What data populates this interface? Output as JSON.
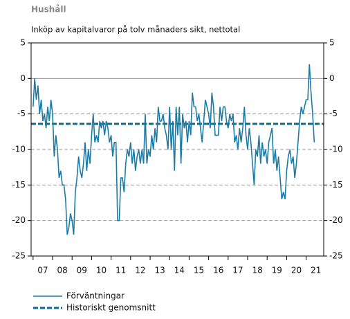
{
  "chart_data": {
    "type": "line",
    "title": "Hushåll",
    "subtitle": "Inköp av kapitalvaror på tolv månaders sikt, nettotal",
    "xlim": [
      2006.9,
      2021.9
    ],
    "xticks": [
      {
        "value": 2007.5,
        "label": "07"
      },
      {
        "value": 2008.5,
        "label": "08"
      },
      {
        "value": 2009.5,
        "label": "09"
      },
      {
        "value": 2010.5,
        "label": "10"
      },
      {
        "value": 2011.5,
        "label": "11"
      },
      {
        "value": 2012.5,
        "label": "12"
      },
      {
        "value": 2013.5,
        "label": "13"
      },
      {
        "value": 2014.5,
        "label": "14"
      },
      {
        "value": 2015.5,
        "label": "15"
      },
      {
        "value": 2016.5,
        "label": "16"
      },
      {
        "value": 2017.5,
        "label": "17"
      },
      {
        "value": 2018.5,
        "label": "18"
      },
      {
        "value": 2019.5,
        "label": "19"
      },
      {
        "value": 2020.5,
        "label": "20"
      },
      {
        "value": 2021.5,
        "label": "21"
      }
    ],
    "xminor_ticks": [
      2007,
      2008,
      2009,
      2010,
      2011,
      2012,
      2013,
      2014,
      2015,
      2016,
      2017,
      2018,
      2019,
      2020,
      2021
    ],
    "ylim": [
      -25,
      5
    ],
    "yticks": [
      5,
      0,
      -5,
      -10,
      -15,
      -20,
      -25
    ],
    "y2lim": [
      -25,
      5
    ],
    "y2ticks": [
      5,
      0,
      -5,
      -10,
      -15,
      -20,
      -25
    ],
    "series": [
      {
        "name": "Förväntningar",
        "color": "#1b7ba6",
        "start": 2007,
        "step": 0.08333,
        "values": [
          -4,
          0,
          -3,
          -1,
          -5,
          -3,
          -6,
          -5,
          -7,
          -4,
          -6,
          -3,
          -5,
          -11,
          -8,
          -10,
          -14,
          -13,
          -15,
          -15,
          -17,
          -22,
          -21,
          -19,
          -20,
          -22,
          -16,
          -14,
          -11,
          -13,
          -14,
          -12,
          -9,
          -13,
          -10,
          -12,
          -8,
          -5,
          -9,
          -8,
          -9,
          -6,
          -7,
          -6,
          -8,
          -6,
          -7,
          -9,
          -8,
          -11,
          -9,
          -9,
          -20,
          -20,
          -14,
          -14,
          -16,
          -12,
          -10,
          -11,
          -9,
          -12,
          -10,
          -13,
          -11,
          -10,
          -12,
          -10,
          -12,
          -5,
          -12,
          -10,
          -11,
          -8,
          -10,
          -7,
          -9,
          -4,
          -6,
          -6,
          -5,
          -7,
          -8,
          -10,
          -4,
          -10,
          -6,
          -13,
          -4,
          -8,
          -4,
          -12,
          -5,
          -7,
          -6,
          -9,
          -6,
          -8,
          -2,
          -4,
          -4,
          -6,
          -5,
          -7,
          -9,
          -6,
          -3,
          -4,
          -5,
          -7,
          -2,
          -4,
          -8,
          -8,
          -8,
          -4,
          -6,
          -4,
          -4,
          -6,
          -7,
          -5,
          -6,
          -5,
          -9,
          -8,
          -10,
          -7,
          -9,
          -7,
          -4,
          -8,
          -10,
          -7,
          -9,
          -12,
          -15,
          -10,
          -11,
          -8,
          -12,
          -9,
          -11,
          -10,
          -12,
          -9,
          -8,
          -7,
          -12,
          -10,
          -13,
          -11,
          -14,
          -17,
          -16,
          -17,
          -13,
          -11,
          -10,
          -12,
          -11,
          -14,
          -12,
          -9,
          -6,
          -4,
          -5,
          -4,
          -3,
          -3,
          2,
          -2,
          -5,
          -9
        ]
      }
    ],
    "average": {
      "name": "Historiskt genomsnitt",
      "value": -6.4,
      "color": "#0e6b8c"
    },
    "grid": true
  }
}
